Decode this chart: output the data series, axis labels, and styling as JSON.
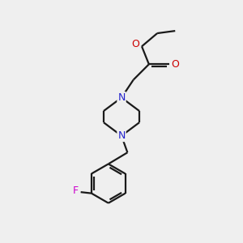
{
  "bg_color": "#efefef",
  "bond_color": "#1a1a1a",
  "N_color": "#2222cc",
  "O_color": "#cc0000",
  "F_color": "#cc00cc",
  "line_width": 1.6,
  "figsize": [
    3.0,
    3.0
  ],
  "dpi": 100,
  "xlim": [
    0,
    10
  ],
  "ylim": [
    0,
    10
  ]
}
